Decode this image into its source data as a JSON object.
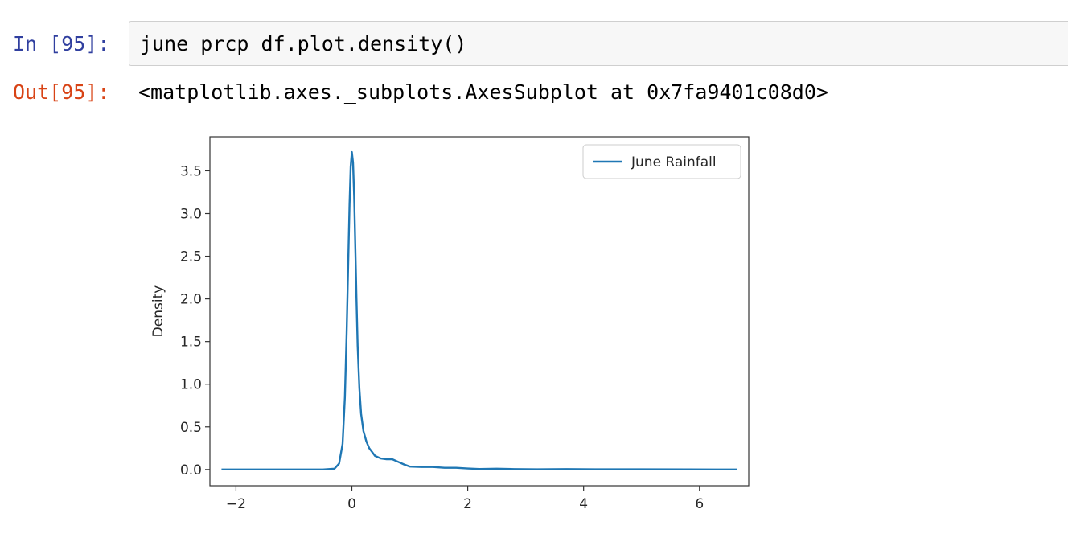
{
  "cell": {
    "input_prompt": "In [95]:",
    "input_code": "june_prcp_df.plot.density()",
    "output_prompt": "Out[95]:",
    "output_text": "<matplotlib.axes._subplots.AxesSubplot at 0x7fa9401c08d0>"
  },
  "colors": {
    "input_prompt": "#303f9f",
    "output_prompt": "#d84315",
    "series_line": "#1f77b4"
  },
  "chart_data": {
    "type": "line",
    "title": "",
    "xlabel": "",
    "ylabel": "Density",
    "xlim": [
      -2.45,
      6.85
    ],
    "ylim": [
      -0.19,
      3.9
    ],
    "xticks": [
      -2,
      0,
      2,
      4,
      6
    ],
    "yticks": [
      0.0,
      0.5,
      1.0,
      1.5,
      2.0,
      2.5,
      3.0,
      3.5
    ],
    "grid": false,
    "legend": "upper right",
    "series": [
      {
        "name": "June Rainfall",
        "x": [
          -2.25,
          -1.0,
          -0.5,
          -0.3,
          -0.22,
          -0.16,
          -0.12,
          -0.09,
          -0.06,
          -0.04,
          -0.02,
          0.0,
          0.02,
          0.04,
          0.06,
          0.08,
          0.1,
          0.13,
          0.16,
          0.2,
          0.25,
          0.3,
          0.4,
          0.5,
          0.6,
          0.7,
          0.8,
          0.9,
          1.0,
          1.2,
          1.4,
          1.6,
          1.8,
          2.0,
          2.2,
          2.5,
          2.8,
          3.2,
          3.7,
          4.2,
          5.0,
          5.8,
          6.65
        ],
        "y": [
          0.0,
          0.0,
          0.0,
          0.01,
          0.07,
          0.3,
          0.85,
          1.6,
          2.5,
          3.1,
          3.55,
          3.72,
          3.6,
          3.2,
          2.6,
          2.0,
          1.45,
          0.95,
          0.65,
          0.45,
          0.33,
          0.25,
          0.16,
          0.13,
          0.12,
          0.12,
          0.09,
          0.06,
          0.035,
          0.03,
          0.03,
          0.02,
          0.02,
          0.012,
          0.006,
          0.01,
          0.005,
          0.003,
          0.005,
          0.003,
          0.002,
          0.001,
          0.0
        ]
      }
    ]
  }
}
